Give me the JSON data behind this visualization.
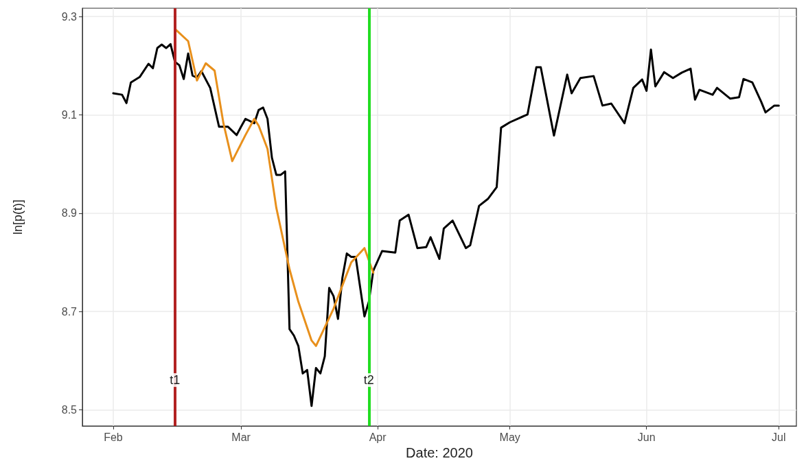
{
  "chart_data": {
    "type": "line",
    "xlabel": "Date: 2020",
    "ylabel": "ln[p(t)]",
    "xlim": [
      "2020-01-25",
      "2020-07-05"
    ],
    "xticks": [
      {
        "value": "2020-02-01",
        "label": "Feb"
      },
      {
        "value": "2020-03-01",
        "label": "Mar"
      },
      {
        "value": "2020-04-01",
        "label": "Apr"
      },
      {
        "value": "2020-05-01",
        "label": "May"
      },
      {
        "value": "2020-06-01",
        "label": "Jun"
      },
      {
        "value": "2020-07-01",
        "label": "Jul"
      }
    ],
    "ylim": [
      8.467,
      9.317
    ],
    "yticks": [
      8.5,
      8.7,
      8.9,
      9.1,
      9.3
    ],
    "grid": true,
    "line_style": "solid",
    "marker": "none",
    "series": [
      {
        "color": "#000000",
        "x": [
          "2020-02-01",
          "2020-02-03",
          "2020-02-04",
          "2020-02-05",
          "2020-02-07",
          "2020-02-09",
          "2020-02-10",
          "2020-02-11",
          "2020-02-12",
          "2020-02-13",
          "2020-02-14",
          "2020-02-15",
          "2020-02-16",
          "2020-02-17",
          "2020-02-18",
          "2020-02-19",
          "2020-02-20",
          "2020-02-21",
          "2020-02-23",
          "2020-02-25",
          "2020-02-27",
          "2020-02-29",
          "2020-03-01",
          "2020-03-02",
          "2020-03-04",
          "2020-03-05",
          "2020-03-06",
          "2020-03-07",
          "2020-03-08",
          "2020-03-09",
          "2020-03-10",
          "2020-03-11",
          "2020-03-12",
          "2020-03-13",
          "2020-03-14",
          "2020-03-15",
          "2020-03-16",
          "2020-03-17",
          "2020-03-18",
          "2020-03-19",
          "2020-03-20",
          "2020-03-21",
          "2020-03-22",
          "2020-03-23",
          "2020-03-24",
          "2020-03-25",
          "2020-03-26",
          "2020-03-27",
          "2020-03-29",
          "2020-03-30",
          "2020-03-31",
          "2020-04-02",
          "2020-04-05",
          "2020-04-06",
          "2020-04-08",
          "2020-04-10",
          "2020-04-12",
          "2020-04-13",
          "2020-04-15",
          "2020-04-16",
          "2020-04-18",
          "2020-04-21",
          "2020-04-22",
          "2020-04-24",
          "2020-04-26",
          "2020-04-28",
          "2020-04-29",
          "2020-05-01",
          "2020-05-05",
          "2020-05-07",
          "2020-05-08",
          "2020-05-11",
          "2020-05-14",
          "2020-05-15",
          "2020-05-17",
          "2020-05-20",
          "2020-05-22",
          "2020-05-24",
          "2020-05-27",
          "2020-05-29",
          "2020-05-31",
          "2020-06-01",
          "2020-06-02",
          "2020-06-03",
          "2020-06-05",
          "2020-06-07",
          "2020-06-09",
          "2020-06-11",
          "2020-06-12",
          "2020-06-13",
          "2020-06-16",
          "2020-06-17",
          "2020-06-20",
          "2020-06-22",
          "2020-06-23",
          "2020-06-25",
          "2020-06-27",
          "2020-06-28",
          "2020-06-30",
          "2020-07-01"
        ],
        "values": [
          9.144,
          9.141,
          9.124,
          9.166,
          9.177,
          9.204,
          9.195,
          9.236,
          9.243,
          9.236,
          9.244,
          9.208,
          9.201,
          9.173,
          9.225,
          9.18,
          9.176,
          9.189,
          9.155,
          9.076,
          9.076,
          9.059,
          9.076,
          9.092,
          9.083,
          9.11,
          9.115,
          9.092,
          9.013,
          8.978,
          8.978,
          8.985,
          8.664,
          8.651,
          8.63,
          8.574,
          8.581,
          8.508,
          8.585,
          8.574,
          8.609,
          8.748,
          8.731,
          8.685,
          8.769,
          8.818,
          8.811,
          8.811,
          8.69,
          8.72,
          8.783,
          8.823,
          8.82,
          8.885,
          8.897,
          8.829,
          8.831,
          8.851,
          8.807,
          8.869,
          8.885,
          8.829,
          8.835,
          8.915,
          8.929,
          8.953,
          9.074,
          9.085,
          9.101,
          9.197,
          9.197,
          9.058,
          9.182,
          9.144,
          9.175,
          9.179,
          9.119,
          9.123,
          9.083,
          9.155,
          9.172,
          9.149,
          9.233,
          9.158,
          9.187,
          9.175,
          9.186,
          9.194,
          9.131,
          9.151,
          9.141,
          9.155,
          9.133,
          9.136,
          9.173,
          9.166,
          9.127,
          9.105,
          9.119,
          9.119
        ]
      },
      {
        "color": "#e8901c",
        "x": [
          "2020-02-15",
          "2020-02-18",
          "2020-02-20",
          "2020-02-22",
          "2020-02-24",
          "2020-02-26",
          "2020-02-28",
          "2020-03-02",
          "2020-03-04",
          "2020-03-05",
          "2020-03-07",
          "2020-03-09",
          "2020-03-12",
          "2020-03-14",
          "2020-03-17",
          "2020-03-18",
          "2020-03-22",
          "2020-03-26",
          "2020-03-29",
          "2020-03-31"
        ],
        "values": [
          9.275,
          9.25,
          9.17,
          9.205,
          9.19,
          9.083,
          9.006,
          9.059,
          9.092,
          9.078,
          9.031,
          8.911,
          8.786,
          8.72,
          8.641,
          8.63,
          8.706,
          8.8,
          8.829,
          8.779
        ]
      }
    ],
    "ref_lines": [
      {
        "axis": "x",
        "value": "2020-02-15",
        "label": "t1",
        "color": "#b22222"
      },
      {
        "axis": "x",
        "value": "2020-03-30",
        "label": "t2",
        "color": "#22dd22"
      }
    ]
  }
}
